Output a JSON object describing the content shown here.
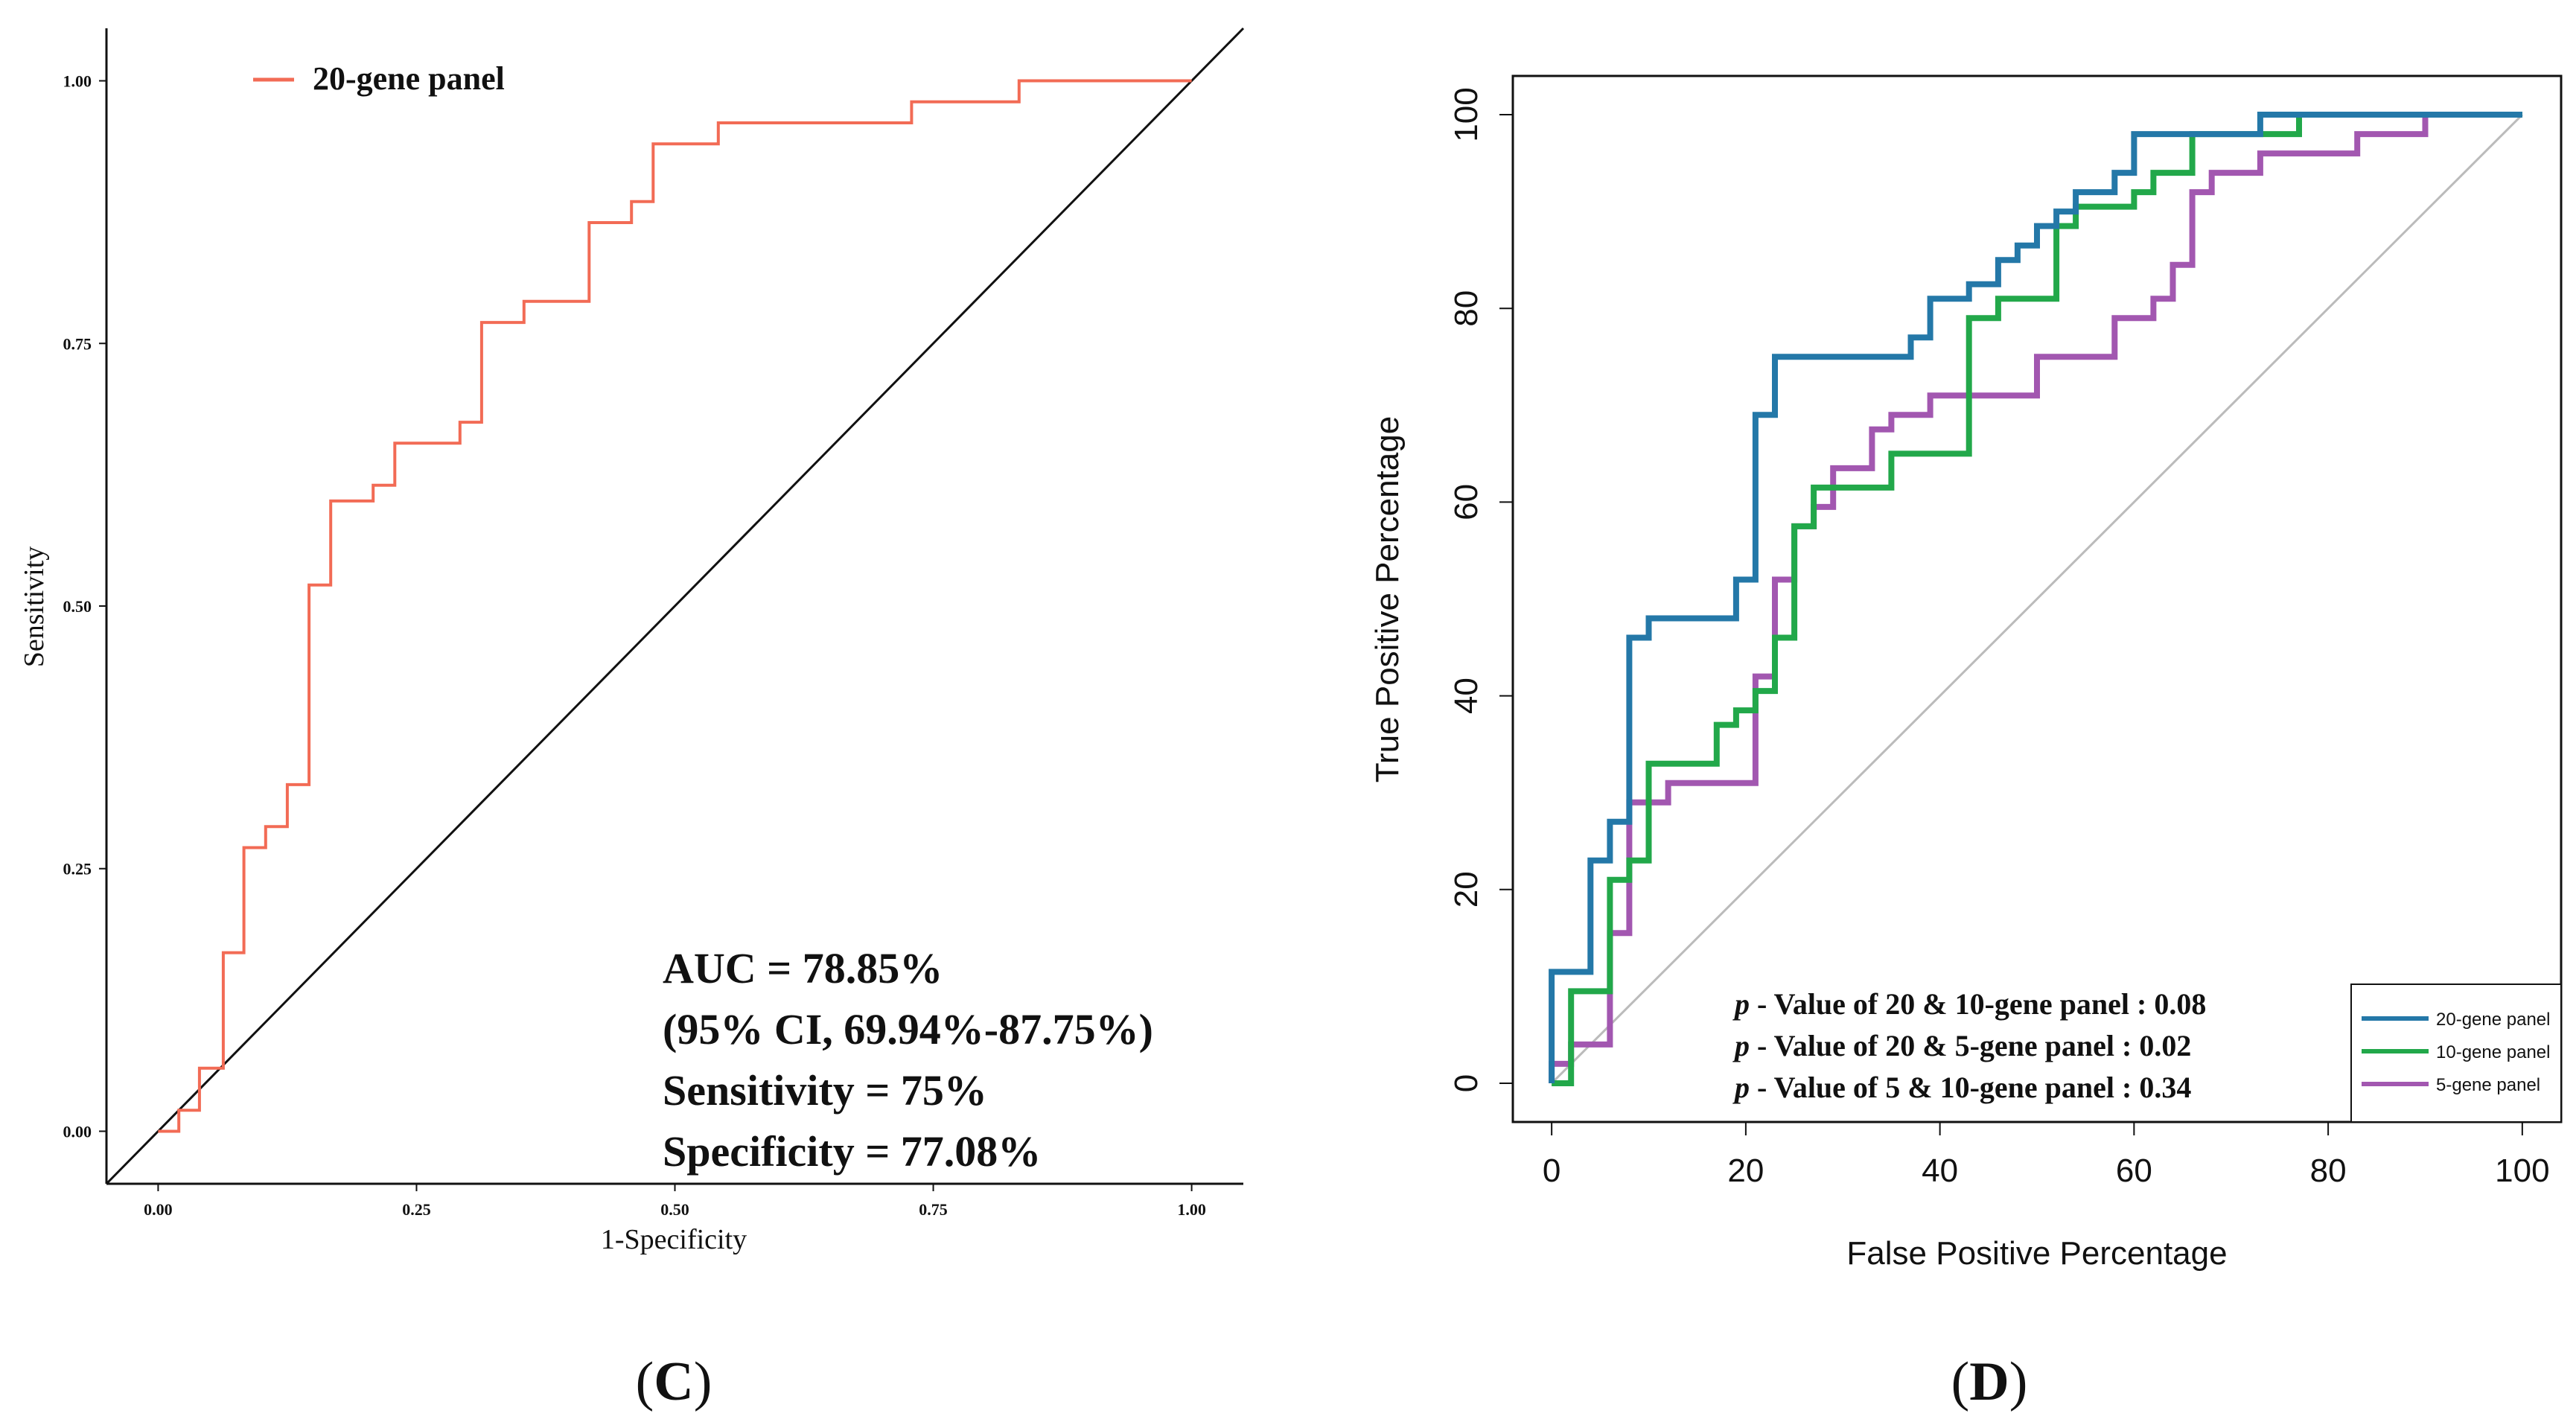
{
  "colors": {
    "c_series": "#f26b55",
    "d_20gene": "#2478a8",
    "d_10gene": "#22a84a",
    "d_5gene": "#a257b0",
    "diagonal_c": "#111111",
    "diagonal_d": "#bbbbbb",
    "axis": "#111111"
  },
  "chart_data": [
    {
      "id": "C",
      "type": "line",
      "panel_label": "C",
      "panel_label_open": "(",
      "panel_label_close": ")",
      "xlabel": "1-Specificity",
      "ylabel": "Sensitivity",
      "xlim": [
        -0.05,
        1.05
      ],
      "ylim": [
        -0.05,
        1.05
      ],
      "xticks": [
        "0.00",
        "0.25",
        "0.50",
        "0.75",
        "1.00"
      ],
      "yticks": [
        "0.00",
        "0.25",
        "0.50",
        "0.75",
        "1.00"
      ],
      "legend": {
        "placement": "top-left",
        "entries": [
          "20-gene panel"
        ]
      },
      "annotations": [
        "AUC = 78.85%",
        "(95% CI, 69.94%-87.75%)",
        "Sensitivity = 75%",
        "Specificity = 77.08%"
      ],
      "series": [
        {
          "name": "20-gene panel",
          "color_key": "c_series",
          "points": [
            [
              0.0,
              0.0
            ],
            [
              0.02,
              0.0
            ],
            [
              0.02,
              0.02
            ],
            [
              0.04,
              0.02
            ],
            [
              0.04,
              0.06
            ],
            [
              0.063,
              0.06
            ],
            [
              0.063,
              0.17
            ],
            [
              0.083,
              0.17
            ],
            [
              0.083,
              0.27
            ],
            [
              0.104,
              0.27
            ],
            [
              0.104,
              0.29
            ],
            [
              0.125,
              0.29
            ],
            [
              0.125,
              0.33
            ],
            [
              0.146,
              0.33
            ],
            [
              0.146,
              0.52
            ],
            [
              0.167,
              0.52
            ],
            [
              0.167,
              0.6
            ],
            [
              0.208,
              0.6
            ],
            [
              0.208,
              0.615
            ],
            [
              0.229,
              0.615
            ],
            [
              0.229,
              0.655
            ],
            [
              0.292,
              0.655
            ],
            [
              0.292,
              0.675
            ],
            [
              0.313,
              0.675
            ],
            [
              0.313,
              0.77
            ],
            [
              0.354,
              0.77
            ],
            [
              0.354,
              0.79
            ],
            [
              0.417,
              0.79
            ],
            [
              0.417,
              0.865
            ],
            [
              0.458,
              0.865
            ],
            [
              0.458,
              0.885
            ],
            [
              0.479,
              0.885
            ],
            [
              0.479,
              0.94
            ],
            [
              0.542,
              0.94
            ],
            [
              0.542,
              0.96
            ],
            [
              0.729,
              0.96
            ],
            [
              0.729,
              0.98
            ],
            [
              0.833,
              0.98
            ],
            [
              0.833,
              1.0
            ],
            [
              1.0,
              1.0
            ]
          ]
        }
      ]
    },
    {
      "id": "D",
      "type": "line",
      "panel_label": "D",
      "panel_label_open": "(",
      "panel_label_close": ")",
      "xlabel": "False Positive Percentage",
      "ylabel": "True Positive Percentage",
      "xlim": [
        -4,
        104
      ],
      "ylim": [
        -4,
        104
      ],
      "xticks": [
        "0",
        "20",
        "40",
        "60",
        "80",
        "100"
      ],
      "yticks": [
        "0",
        "20",
        "40",
        "60",
        "80",
        "100"
      ],
      "legend": {
        "placement": "bottom-right",
        "entries": [
          "20-gene panel",
          "10-gene panel",
          "5-gene panel"
        ]
      },
      "annotations": [
        {
          "italic": "p",
          "text": " - Value of 20 & 10-gene panel : 0.08"
        },
        {
          "italic": "p",
          "text": " - Value of 20 & 5-gene panel : 0.02"
        },
        {
          "italic": "p",
          "text": " - Value of 5 & 10-gene panel : 0.34"
        }
      ],
      "series": [
        {
          "name": "20-gene panel",
          "color_key": "d_20gene",
          "points": [
            [
              0,
              0
            ],
            [
              0,
              11.5
            ],
            [
              4,
              11.5
            ],
            [
              4,
              23
            ],
            [
              6,
              23
            ],
            [
              6,
              27
            ],
            [
              8,
              27
            ],
            [
              8,
              46
            ],
            [
              10,
              46
            ],
            [
              10,
              48
            ],
            [
              19,
              48
            ],
            [
              19,
              52
            ],
            [
              21,
              52
            ],
            [
              21,
              69
            ],
            [
              23,
              69
            ],
            [
              23,
              75
            ],
            [
              37,
              75
            ],
            [
              37,
              77
            ],
            [
              39,
              77
            ],
            [
              39,
              81
            ],
            [
              43,
              81
            ],
            [
              43,
              82.5
            ],
            [
              46,
              82.5
            ],
            [
              46,
              85
            ],
            [
              48,
              85
            ],
            [
              48,
              86.5
            ],
            [
              50,
              86.5
            ],
            [
              50,
              88.5
            ],
            [
              52,
              88.5
            ],
            [
              52,
              90
            ],
            [
              54,
              90
            ],
            [
              54,
              92
            ],
            [
              58,
              92
            ],
            [
              58,
              94
            ],
            [
              60,
              94
            ],
            [
              60,
              98
            ],
            [
              73,
              98
            ],
            [
              73,
              100
            ],
            [
              100,
              100
            ]
          ]
        },
        {
          "name": "10-gene panel",
          "color_key": "d_10gene",
          "points": [
            [
              0,
              0
            ],
            [
              2,
              0
            ],
            [
              2,
              9.5
            ],
            [
              6,
              9.5
            ],
            [
              6,
              21
            ],
            [
              8,
              21
            ],
            [
              8,
              23
            ],
            [
              10,
              23
            ],
            [
              10,
              33
            ],
            [
              17,
              33
            ],
            [
              17,
              37
            ],
            [
              19,
              37
            ],
            [
              19,
              38.5
            ],
            [
              21,
              38.5
            ],
            [
              21,
              40.5
            ],
            [
              23,
              40.5
            ],
            [
              23,
              46
            ],
            [
              25,
              46
            ],
            [
              25,
              57.5
            ],
            [
              27,
              57.5
            ],
            [
              27,
              61.5
            ],
            [
              35,
              61.5
            ],
            [
              35,
              65
            ],
            [
              43,
              65
            ],
            [
              43,
              79
            ],
            [
              46,
              79
            ],
            [
              46,
              81
            ],
            [
              52,
              81
            ],
            [
              52,
              88.5
            ],
            [
              54,
              88.5
            ],
            [
              54,
              90.5
            ],
            [
              60,
              90.5
            ],
            [
              60,
              92
            ],
            [
              62,
              92
            ],
            [
              62,
              94
            ],
            [
              66,
              94
            ],
            [
              66,
              98
            ],
            [
              77,
              98
            ],
            [
              77,
              100
            ],
            [
              100,
              100
            ]
          ]
        },
        {
          "name": "5-gene panel",
          "color_key": "d_5gene",
          "points": [
            [
              0,
              0
            ],
            [
              0,
              2
            ],
            [
              2,
              2
            ],
            [
              2,
              4
            ],
            [
              6,
              4
            ],
            [
              6,
              15.5
            ],
            [
              8,
              15.5
            ],
            [
              8,
              29
            ],
            [
              12,
              29
            ],
            [
              12,
              31
            ],
            [
              21,
              31
            ],
            [
              21,
              42
            ],
            [
              23,
              42
            ],
            [
              23,
              52
            ],
            [
              25,
              52
            ],
            [
              25,
              57.5
            ],
            [
              27,
              57.5
            ],
            [
              27,
              59.5
            ],
            [
              29,
              59.5
            ],
            [
              29,
              63.5
            ],
            [
              33,
              63.5
            ],
            [
              33,
              67.5
            ],
            [
              35,
              67.5
            ],
            [
              35,
              69
            ],
            [
              39,
              69
            ],
            [
              39,
              71
            ],
            [
              50,
              71
            ],
            [
              50,
              75
            ],
            [
              58,
              75
            ],
            [
              58,
              79
            ],
            [
              62,
              79
            ],
            [
              62,
              81
            ],
            [
              64,
              81
            ],
            [
              64,
              84.5
            ],
            [
              66,
              84.5
            ],
            [
              66,
              92
            ],
            [
              68,
              92
            ],
            [
              68,
              94
            ],
            [
              73,
              94
            ],
            [
              73,
              96
            ],
            [
              83,
              96
            ],
            [
              83,
              98
            ],
            [
              90,
              98
            ],
            [
              90,
              100
            ],
            [
              100,
              100
            ]
          ]
        }
      ]
    }
  ]
}
